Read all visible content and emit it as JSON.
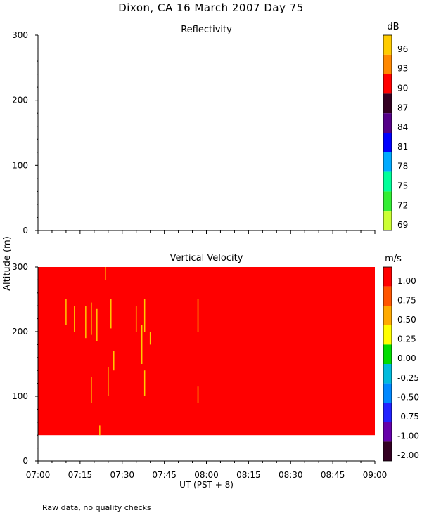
{
  "title": "Dixon, CA 16 March 2007  Day  75",
  "footer_note": "Raw data, no quality checks",
  "colors": {
    "velocity_fill": "#ff0000",
    "streak": "#ffcc00"
  },
  "chart_data": [
    {
      "type": "heatmap",
      "title": "Reflectivity",
      "ylabel": "Altitude (m)",
      "xlabel": "",
      "xlim": [
        "07:00",
        "09:00"
      ],
      "ylim": [
        0,
        300
      ],
      "x_ticks": [
        "07:00",
        "07:15",
        "07:30",
        "07:45",
        "08:00",
        "08:15",
        "08:30",
        "08:45",
        "09:00"
      ],
      "y_ticks": [
        0,
        100,
        200,
        300
      ],
      "colorbar": {
        "unit": "dB",
        "labels": [
          "96",
          "93",
          "90",
          "87",
          "84",
          "81",
          "78",
          "75",
          "72",
          "69"
        ],
        "colors": [
          "#ffcc00",
          "#ff8800",
          "#ff0000",
          "#330022",
          "#550088",
          "#0000ff",
          "#00aaff",
          "#00ff99",
          "#33ee33",
          "#ccff33"
        ]
      },
      "values": []
    },
    {
      "type": "heatmap",
      "title": "Vertical Velocity",
      "ylabel": "Altitude (m)",
      "xlabel": "UT  (PST + 8)",
      "xlim": [
        "07:00",
        "09:00"
      ],
      "ylim": [
        0,
        300
      ],
      "x_ticks": [
        "07:00",
        "07:15",
        "07:30",
        "07:45",
        "08:00",
        "08:15",
        "08:30",
        "08:45",
        "09:00"
      ],
      "y_ticks": [
        0,
        100,
        200,
        300
      ],
      "data_altitude_range": [
        40,
        300
      ],
      "data_time_range": [
        "07:00",
        "09:00"
      ],
      "dominant_value": 1.0,
      "colorbar": {
        "unit": "m/s",
        "labels": [
          "1.00",
          "0.75",
          "0.50",
          "0.25",
          "0.00",
          "-0.25",
          "-0.50",
          "-0.75",
          "-1.00",
          "-2.00"
        ],
        "colors": [
          "#ff0000",
          "#ff5500",
          "#ffaa00",
          "#ffff00",
          "#00dd00",
          "#00bbdd",
          "#0088ff",
          "#2222ff",
          "#6600aa",
          "#330022"
        ]
      },
      "streaks": [
        {
          "time_min": 10,
          "alt": [
            210,
            250
          ],
          "value": 0.5
        },
        {
          "time_min": 13,
          "alt": [
            200,
            240
          ],
          "value": 0.5
        },
        {
          "time_min": 17,
          "alt": [
            190,
            240
          ],
          "value": 0.5
        },
        {
          "time_min": 19,
          "alt": [
            195,
            245
          ],
          "value": 0.5
        },
        {
          "time_min": 19,
          "alt": [
            90,
            130
          ],
          "value": 0.5
        },
        {
          "time_min": 21,
          "alt": [
            185,
            235
          ],
          "value": 0.5
        },
        {
          "time_min": 22,
          "alt": [
            40,
            55
          ],
          "value": 0.5
        },
        {
          "time_min": 24,
          "alt": [
            280,
            300
          ],
          "value": 0.5
        },
        {
          "time_min": 25,
          "alt": [
            100,
            145
          ],
          "value": 0.5
        },
        {
          "time_min": 26,
          "alt": [
            205,
            250
          ],
          "value": 0.5
        },
        {
          "time_min": 27,
          "alt": [
            140,
            170
          ],
          "value": 0.5
        },
        {
          "time_min": 35,
          "alt": [
            200,
            240
          ],
          "value": 0.5
        },
        {
          "time_min": 37,
          "alt": [
            150,
            210
          ],
          "value": 0.5
        },
        {
          "time_min": 38,
          "alt": [
            200,
            250
          ],
          "value": 0.5
        },
        {
          "time_min": 38,
          "alt": [
            100,
            140
          ],
          "value": 0.5
        },
        {
          "time_min": 40,
          "alt": [
            180,
            200
          ],
          "value": 0.5
        },
        {
          "time_min": 57,
          "alt": [
            200,
            250
          ],
          "value": 0.5
        },
        {
          "time_min": 57,
          "alt": [
            90,
            115
          ],
          "value": 0.5
        }
      ]
    }
  ]
}
